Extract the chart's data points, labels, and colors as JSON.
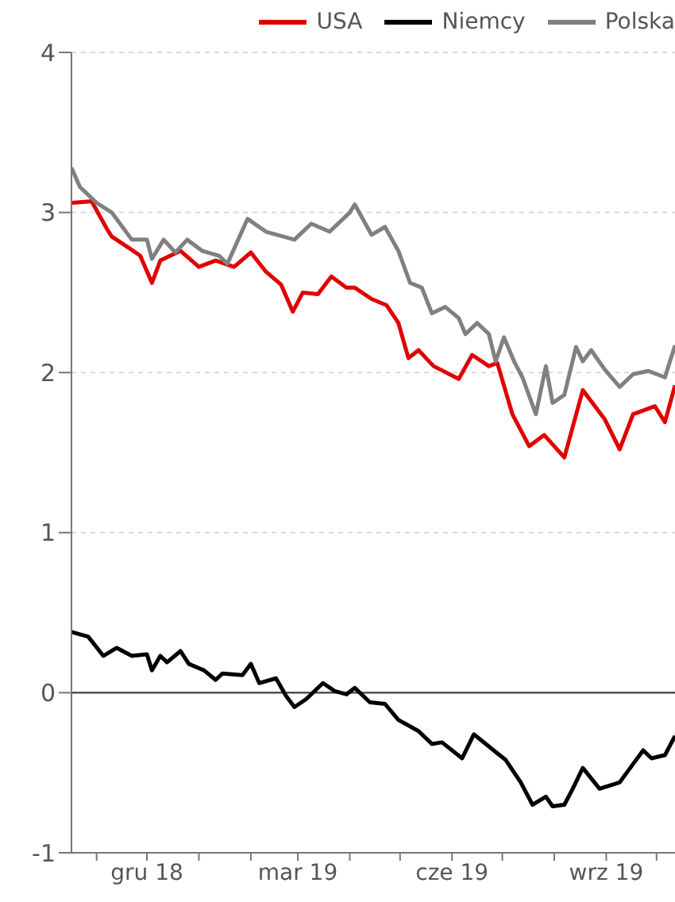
{
  "chart_data": {
    "type": "line",
    "xlim": [
      "2018-10-17",
      "2019-10-12"
    ],
    "ylim": [
      -1,
      4
    ],
    "yticks": [
      -1,
      0,
      1,
      2,
      3,
      4
    ],
    "xticks": [
      {
        "value": "2018-11-01",
        "label": null
      },
      {
        "value": "2018-12-01",
        "label": "gru 18"
      },
      {
        "value": "2019-01-01",
        "label": null
      },
      {
        "value": "2019-02-01",
        "label": null
      },
      {
        "value": "2019-03-01",
        "label": "mar 19"
      },
      {
        "value": "2019-04-01",
        "label": null
      },
      {
        "value": "2019-05-01",
        "label": null
      },
      {
        "value": "2019-06-01",
        "label": "cze 19"
      },
      {
        "value": "2019-07-01",
        "label": null
      },
      {
        "value": "2019-08-01",
        "label": null
      },
      {
        "value": "2019-09-01",
        "label": "wrz 19"
      },
      {
        "value": "2019-10-01",
        "label": null
      }
    ],
    "grid": "y",
    "legend": "top right",
    "line_style": "solid",
    "ref_lines": [
      {
        "axis": "y",
        "value": 0,
        "color": "#404040"
      }
    ],
    "series": [
      {
        "name": "USA",
        "color": "#e00000",
        "x": [
          "2018-10-17",
          "2018-10-29",
          "2018-11-07",
          "2018-11-10",
          "2018-11-20",
          "2018-11-27",
          "2018-12-04",
          "2018-12-09",
          "2018-12-21",
          "2019-01-01",
          "2019-01-11",
          "2019-01-22",
          "2019-02-01",
          "2019-02-10",
          "2019-02-19",
          "2019-02-26",
          "2019-03-04",
          "2019-03-13",
          "2019-03-21",
          "2019-03-30",
          "2019-04-04",
          "2019-04-14",
          "2019-04-23",
          "2019-04-30",
          "2019-05-06",
          "2019-05-12",
          "2019-05-21",
          "2019-06-05",
          "2019-06-13",
          "2019-06-23",
          "2019-06-28",
          "2019-07-07",
          "2019-07-17",
          "2019-07-26",
          "2019-08-07",
          "2019-08-18",
          "2019-08-31",
          "2019-09-09",
          "2019-09-17",
          "2019-09-30",
          "2019-10-06",
          "2019-10-12"
        ],
        "values": [
          3.06,
          3.07,
          2.9,
          2.85,
          2.78,
          2.73,
          2.56,
          2.7,
          2.76,
          2.66,
          2.7,
          2.66,
          2.75,
          2.63,
          2.55,
          2.38,
          2.5,
          2.49,
          2.6,
          2.53,
          2.53,
          2.46,
          2.42,
          2.31,
          2.09,
          2.14,
          2.04,
          1.96,
          2.11,
          2.04,
          2.06,
          1.74,
          1.54,
          1.61,
          1.47,
          1.89,
          1.71,
          1.52,
          1.74,
          1.79,
          1.69,
          1.92
        ]
      },
      {
        "name": "Niemcy",
        "color": "#000000",
        "x": [
          "2018-10-17",
          "2018-10-27",
          "2018-11-05",
          "2018-11-13",
          "2018-11-22",
          "2018-12-01",
          "2018-12-04",
          "2018-12-09",
          "2018-12-13",
          "2018-12-21",
          "2018-12-26",
          "2019-01-04",
          "2019-01-11",
          "2019-01-15",
          "2019-01-27",
          "2019-02-01",
          "2019-02-06",
          "2019-02-16",
          "2019-02-22",
          "2019-02-27",
          "2019-03-06",
          "2019-03-16",
          "2019-03-23",
          "2019-03-30",
          "2019-04-04",
          "2019-04-13",
          "2019-04-22",
          "2019-04-30",
          "2019-05-12",
          "2019-05-20",
          "2019-05-26",
          "2019-06-07",
          "2019-06-14",
          "2019-06-27",
          "2019-07-03",
          "2019-07-12",
          "2019-07-19",
          "2019-07-27",
          "2019-07-31",
          "2019-08-07",
          "2019-08-12",
          "2019-08-18",
          "2019-08-28",
          "2019-09-09",
          "2019-09-16",
          "2019-09-23",
          "2019-09-28",
          "2019-10-06",
          "2019-10-12"
        ],
        "values": [
          0.38,
          0.35,
          0.23,
          0.28,
          0.23,
          0.24,
          0.14,
          0.23,
          0.19,
          0.26,
          0.18,
          0.14,
          0.08,
          0.12,
          0.11,
          0.18,
          0.06,
          0.09,
          -0.02,
          -0.09,
          -0.04,
          0.06,
          0.01,
          -0.01,
          0.03,
          -0.06,
          -0.07,
          -0.17,
          -0.24,
          -0.32,
          -0.31,
          -0.41,
          -0.26,
          -0.37,
          -0.42,
          -0.56,
          -0.7,
          -0.65,
          -0.71,
          -0.7,
          -0.6,
          -0.47,
          -0.6,
          -0.56,
          -0.46,
          -0.36,
          -0.41,
          -0.39,
          -0.27
        ]
      },
      {
        "name": "Polska",
        "color": "#808080",
        "x": [
          "2018-10-17",
          "2018-10-22",
          "2018-11-01",
          "2018-11-10",
          "2018-11-22",
          "2018-12-01",
          "2018-12-04",
          "2018-12-11",
          "2018-12-18",
          "2018-12-25",
          "2019-01-03",
          "2019-01-13",
          "2019-01-18",
          "2019-01-30",
          "2019-02-10",
          "2019-02-27",
          "2019-03-09",
          "2019-03-20",
          "2019-04-01",
          "2019-04-04",
          "2019-04-14",
          "2019-04-22",
          "2019-04-30",
          "2019-05-07",
          "2019-05-14",
          "2019-05-20",
          "2019-05-28",
          "2019-06-05",
          "2019-06-09",
          "2019-06-16",
          "2019-06-23",
          "2019-06-27",
          "2019-07-02",
          "2019-07-08",
          "2019-07-13",
          "2019-07-21",
          "2019-07-27",
          "2019-07-31",
          "2019-08-07",
          "2019-08-14",
          "2019-08-18",
          "2019-08-23",
          "2019-08-31",
          "2019-09-09",
          "2019-09-17",
          "2019-09-26",
          "2019-10-06",
          "2019-10-12"
        ],
        "values": [
          3.28,
          3.16,
          3.06,
          3.0,
          2.83,
          2.83,
          2.71,
          2.83,
          2.75,
          2.83,
          2.76,
          2.73,
          2.68,
          2.96,
          2.88,
          2.83,
          2.93,
          2.88,
          3.0,
          3.05,
          2.86,
          2.91,
          2.76,
          2.56,
          2.53,
          2.37,
          2.41,
          2.34,
          2.24,
          2.31,
          2.24,
          2.07,
          2.22,
          2.07,
          1.97,
          1.74,
          2.04,
          1.81,
          1.86,
          2.16,
          2.07,
          2.14,
          2.02,
          1.91,
          1.99,
          2.01,
          1.97,
          2.17
        ]
      }
    ]
  }
}
